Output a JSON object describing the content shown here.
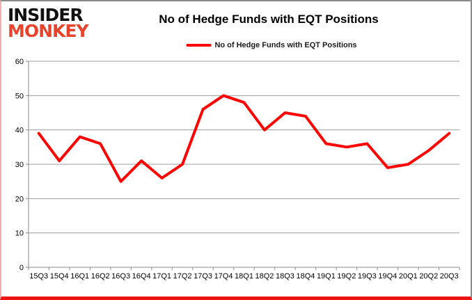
{
  "logo": {
    "line1": "INSIDER",
    "line2": "MONKEY"
  },
  "header": {
    "title": "No of Hedge Funds with EQT Positions"
  },
  "legend": {
    "label": "No of Hedge Funds with EQT Positions"
  },
  "colors": {
    "line": "#ff0000",
    "grid": "#9b9b9b",
    "axis": "#8a8a8a",
    "text": "#000000",
    "logo_accent": "#e8432d",
    "frame_bottom": "#ee1414"
  },
  "chart_data": {
    "type": "line",
    "title": "No of Hedge Funds with EQT Positions",
    "legend_entries": [
      "No of Hedge Funds with EQT Positions"
    ],
    "legend_position": "top",
    "grid": true,
    "xlabel": "",
    "ylabel": "",
    "ylim": [
      0,
      60
    ],
    "y_ticks": [
      0,
      10,
      20,
      30,
      40,
      50,
      60
    ],
    "categories": [
      "15Q3",
      "15Q4",
      "16Q1",
      "16Q2",
      "16Q3",
      "16Q4",
      "17Q1",
      "17Q2",
      "17Q3",
      "17Q4",
      "18Q1",
      "18Q2",
      "18Q3",
      "18Q4",
      "19Q1",
      "19Q2",
      "19Q3",
      "19Q4",
      "20Q1",
      "20Q2",
      "20Q3"
    ],
    "series": [
      {
        "name": "No of Hedge Funds with EQT Positions",
        "color": "#ff0000",
        "values": [
          39,
          31,
          38,
          36,
          25,
          31,
          26,
          30,
          46,
          50,
          48,
          40,
          45,
          44,
          36,
          35,
          36,
          29,
          30,
          34,
          39
        ]
      }
    ]
  }
}
